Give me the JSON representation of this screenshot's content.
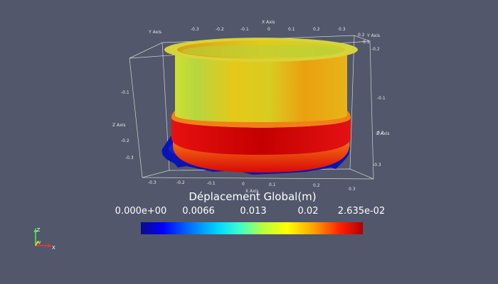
{
  "axes": {
    "x_title": "X Axis",
    "y_title": "Y Axis",
    "z_title": "Z Axis",
    "top_x_ticks": [
      "-0.3",
      "-0.2",
      "-0.1",
      "0",
      "0.1",
      "0.2",
      "0.3"
    ],
    "bottom_x_ticks": [
      "-0.3",
      "-0.2",
      "-0.1",
      "0",
      "0.1",
      "0.2",
      "0.3"
    ],
    "right_y_ticks": [
      "0.2",
      "0.1",
      "-0.2"
    ],
    "left_z_ticks": [
      "-0.1",
      "-0.2",
      "-0.3"
    ],
    "right_z_ticks": [
      "-0.1",
      "-0.2",
      "-0.3"
    ]
  },
  "legend": {
    "title": "Déplacement Global(m)",
    "labels": [
      "0.000e+00",
      "0.0066",
      "0.013",
      "0.02",
      "2.635e-02"
    ],
    "colormap": [
      "#0b0c8a",
      "#0000ff",
      "#00d8ff",
      "#b8ff40",
      "#ffff00",
      "#ff2000",
      "#b00000"
    ]
  },
  "orientation_axes": {
    "x": "X",
    "y": "Y",
    "z": "Z"
  },
  "colors": {
    "background": "#52576b",
    "x_axis": "#ff3030",
    "y_axis": "#f0e000",
    "z_axis": "#40ff40"
  }
}
